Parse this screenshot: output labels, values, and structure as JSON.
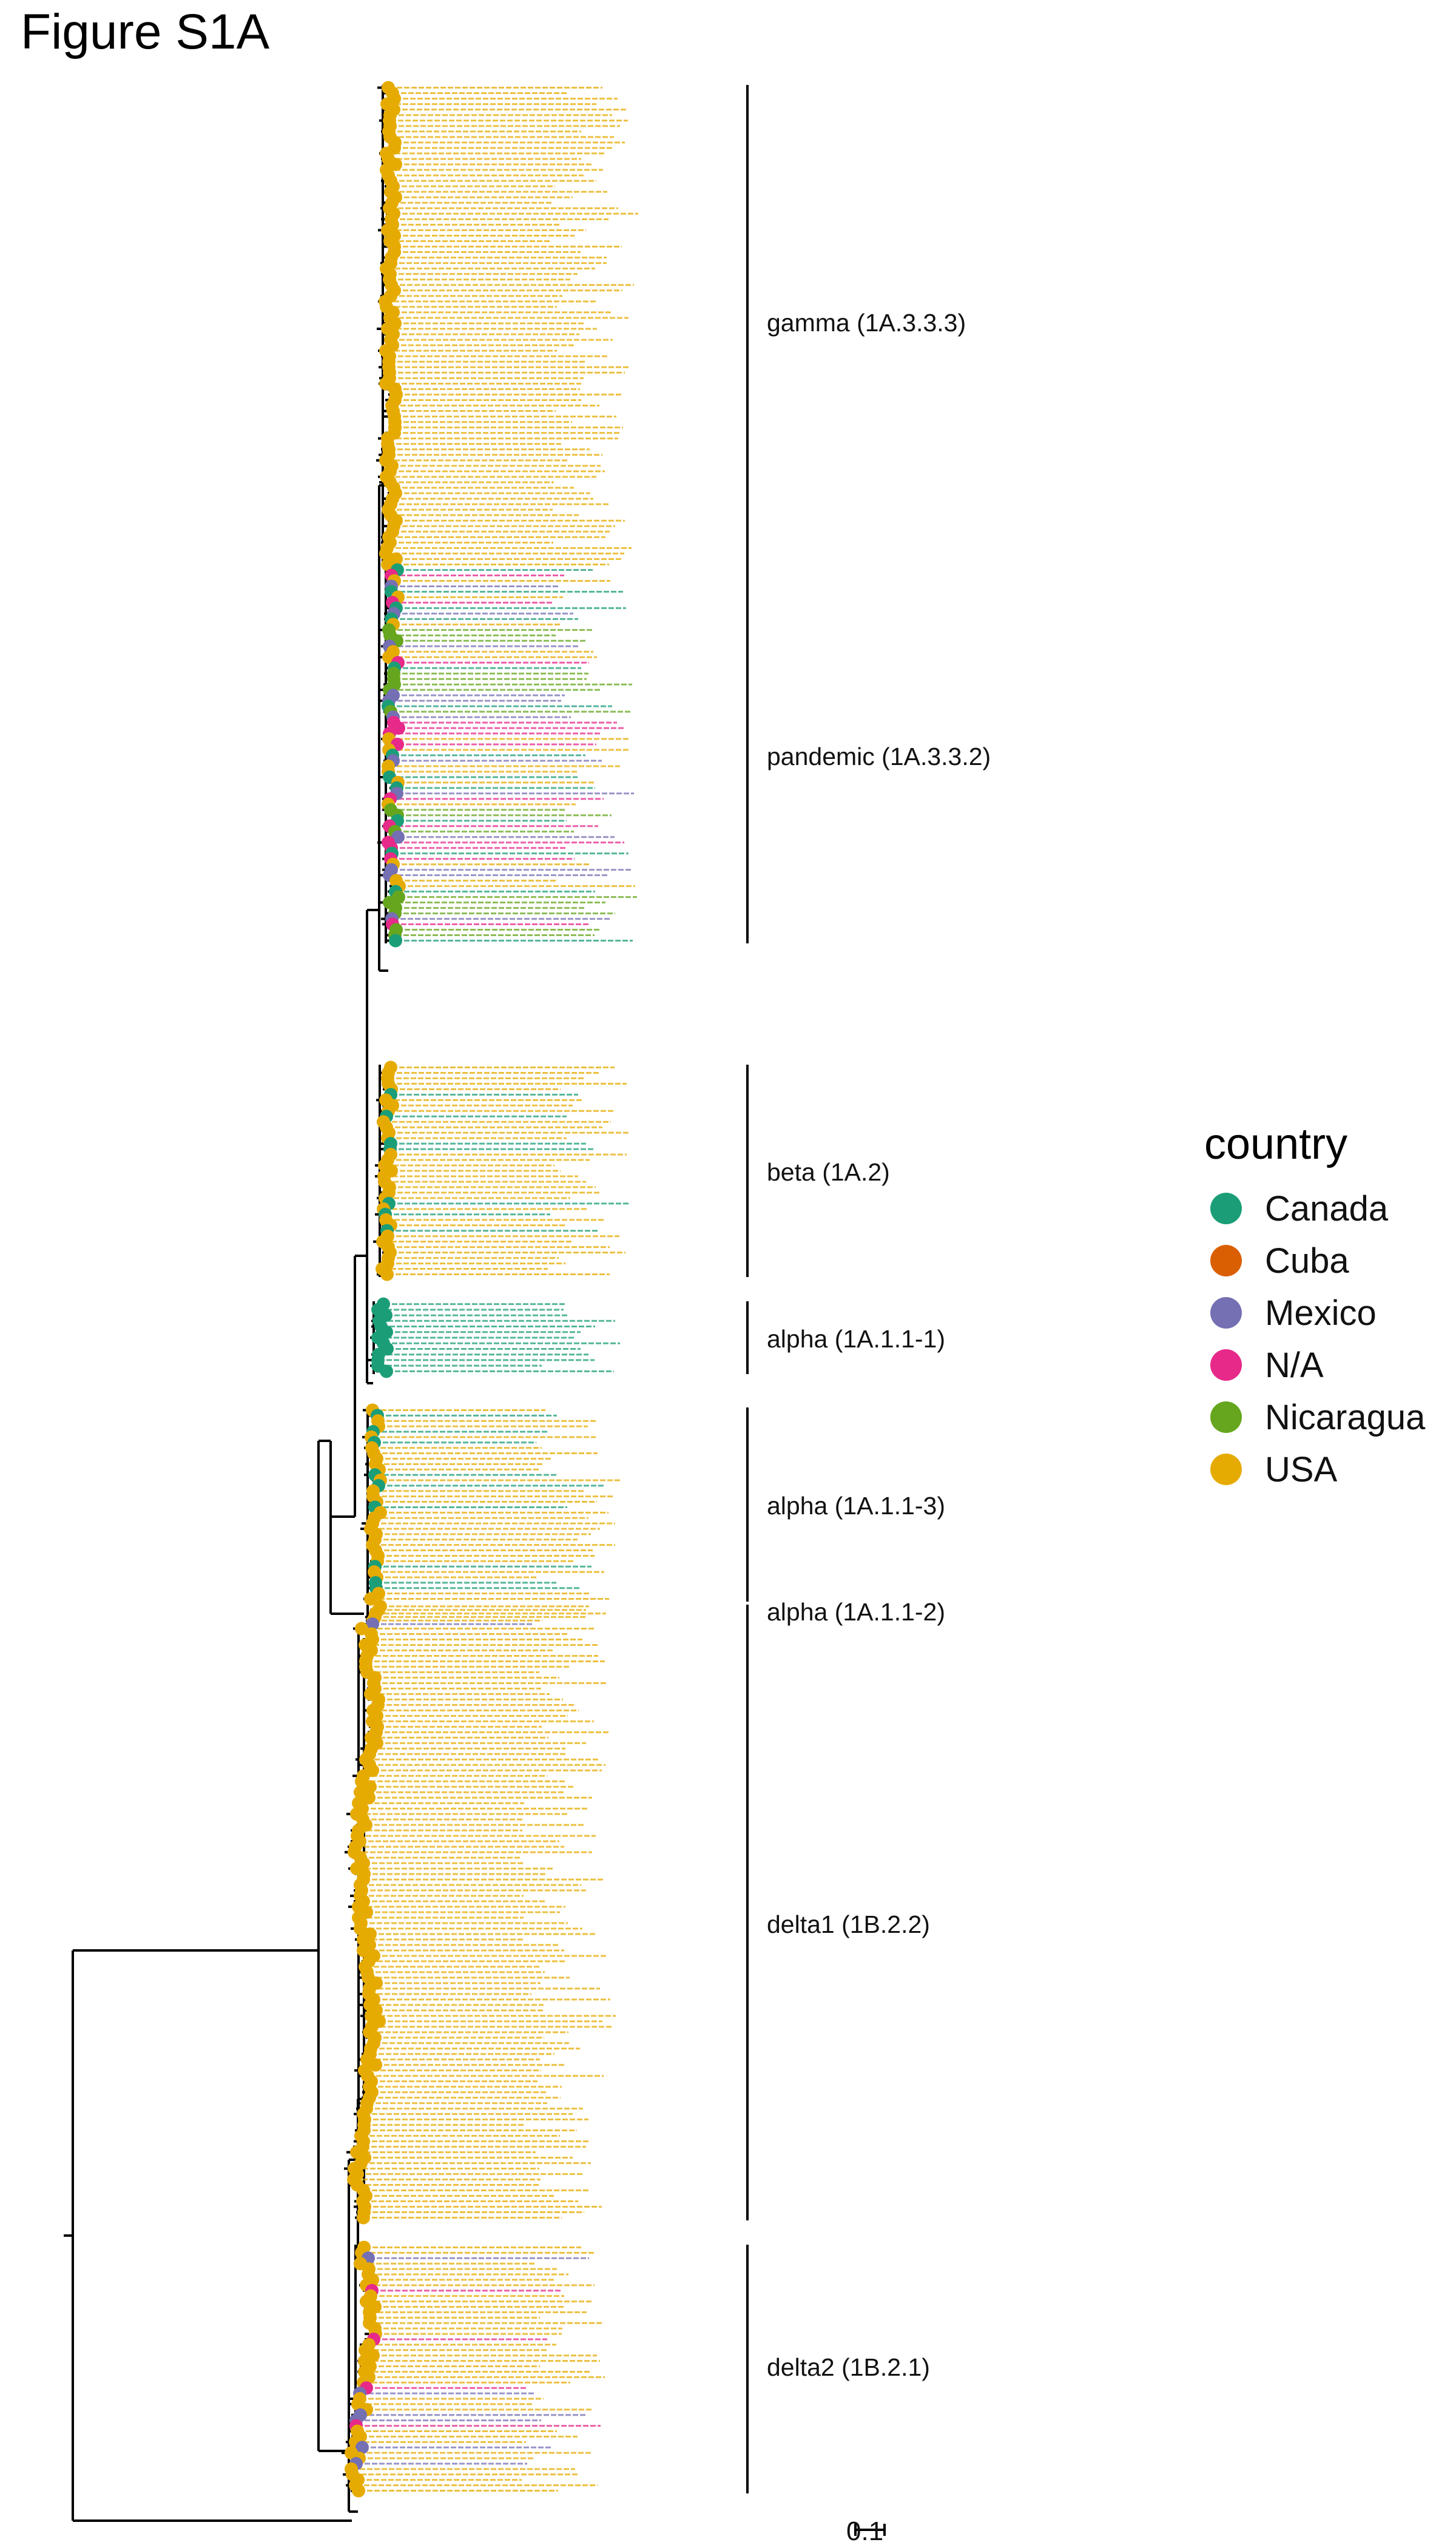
{
  "title": "Figure S1A",
  "colors": {
    "Canada": "#1b9e77",
    "Cuba": "#d95f02",
    "Mexico": "#7570b3",
    "N/A": "#e7298a",
    "Nicaragua": "#66a61e",
    "USA": "#e6ab02"
  },
  "legend": {
    "title": "country",
    "items": [
      {
        "label": "Canada",
        "color": "#1b9e77"
      },
      {
        "label": "Cuba",
        "color": "#d95f02"
      },
      {
        "label": "Mexico",
        "color": "#7570b3"
      },
      {
        "label": "N/A",
        "color": "#e7298a"
      },
      {
        "label": "Nicaragua",
        "color": "#66a61e"
      },
      {
        "label": "USA",
        "color": "#e6ab02"
      }
    ]
  },
  "clades": [
    {
      "label": "gamma (1A.3.3.3)",
      "countries": [
        "USA"
      ]
    },
    {
      "label": "pandemic (1A.3.3.2)",
      "countries": [
        "Canada",
        "Mexico",
        "USA",
        "N/A",
        "Nicaragua"
      ]
    },
    {
      "label": "beta (1A.2)",
      "countries": [
        "USA",
        "Canada"
      ]
    },
    {
      "label": "alpha (1A.1.1-1)",
      "countries": [
        "Canada",
        "USA"
      ]
    },
    {
      "label": "alpha (1A.1.1-3)",
      "countries": [
        "USA",
        "Canada"
      ]
    },
    {
      "label": "alpha (1A.1.1-2)",
      "countries": [
        "USA",
        "Mexico"
      ]
    },
    {
      "label": "delta1 (1B.2.2)",
      "countries": [
        "USA"
      ]
    },
    {
      "label": "delta2 (1B.2.1)",
      "countries": [
        "USA",
        "N/A",
        "Mexico"
      ]
    }
  ],
  "scale_bar": {
    "label": "0.1",
    "value": 0.1
  }
}
